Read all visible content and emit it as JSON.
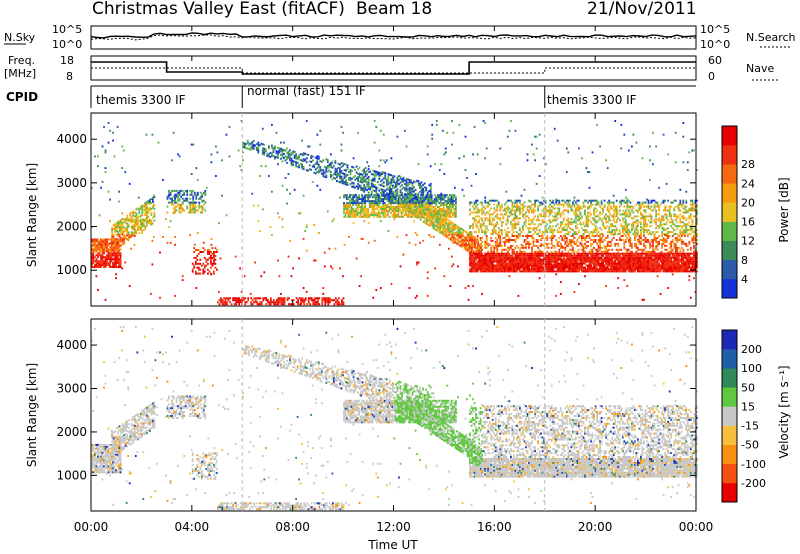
{
  "header": {
    "station": "Christmas Valley East (fitACF)",
    "beam": "Beam 18",
    "date": "21/Nov/2011"
  },
  "panel_labels": {
    "nsky": "N.Sky",
    "nsearch": "N.Search",
    "freq": "Freq.",
    "freq_unit": "[MHz]",
    "nave": "Nave",
    "cpid": "CPID",
    "nsky_ticks": [
      "10^5",
      "10^0"
    ],
    "nsearch_ticks": [
      "10^5",
      "10^0"
    ],
    "freq_ticks": [
      "18",
      "8"
    ],
    "nave_ticks": [
      "60",
      "0"
    ]
  },
  "cpid_segments": [
    {
      "start": 0,
      "end": 6,
      "label": "themis 3300 IF"
    },
    {
      "start": 6,
      "end": 18,
      "label": "normal (fast) 151 IF"
    },
    {
      "start": 18,
      "end": 24,
      "label": "themis 3300 IF"
    }
  ],
  "colors": {
    "power_scale": [
      "#1432dc",
      "#2a5aa8",
      "#3c8c5a",
      "#5fb84a",
      "#e8c020",
      "#f59c10",
      "#f56a10",
      "#f03010",
      "#e80000"
    ],
    "velocity_scale": [
      "#e80000",
      "#f55010",
      "#f59010",
      "#f5c040",
      "#c8c8c8",
      "#5fc840",
      "#2e8a5a",
      "#1f5fa8",
      "#1a2ab4"
    ]
  },
  "chart_data": [
    {
      "type": "heatmap",
      "name": "Power",
      "ylabel": "Slant Range [km]",
      "y_ticks": [
        1000,
        2000,
        3000,
        4000
      ],
      "ylim": [
        180,
        4600
      ],
      "colorbar_label": "Power [dB]",
      "colorbar_ticks": [
        "4",
        "8",
        "12",
        "16",
        "20",
        "24",
        "28"
      ],
      "crange": [
        0,
        32
      ]
    },
    {
      "type": "heatmap",
      "name": "Velocity",
      "ylabel": "Slant Range [km]",
      "y_ticks": [
        1000,
        2000,
        3000,
        4000
      ],
      "ylim": [
        180,
        4600
      ],
      "colorbar_label": "Velocity [m s⁻¹]",
      "colorbar_ticks": [
        "200",
        "100",
        "50",
        "15",
        "-15",
        "-50",
        "-100",
        "-200"
      ],
      "crange": [
        -250,
        250
      ]
    }
  ],
  "x_axis": {
    "xlabel": "Time UT",
    "tick_labels": [
      "00:00",
      "04:00",
      "08:00",
      "12:00",
      "16:00",
      "20:00",
      "00:00"
    ],
    "tick_hours": [
      0,
      4,
      8,
      12,
      16,
      20,
      24
    ],
    "xlim": [
      0,
      24
    ]
  }
}
